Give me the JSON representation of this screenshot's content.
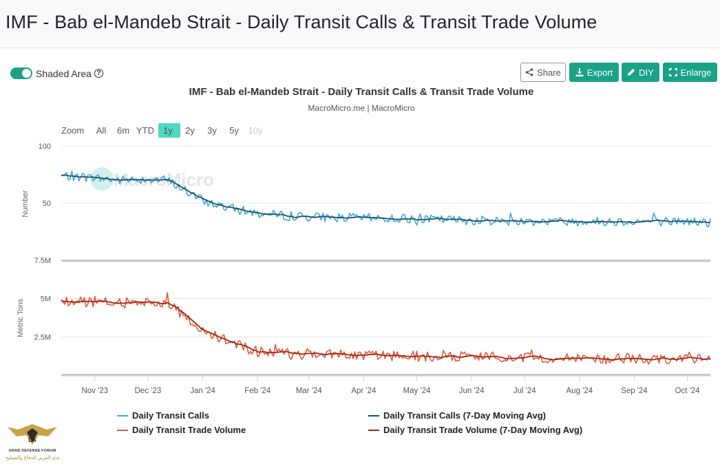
{
  "page": {
    "title": "IMF - Bab el-Mandeb Strait - Daily Transit Calls & Transit Trade Volume"
  },
  "controls": {
    "shaded_area_label": "Shaded Area",
    "help_glyph": "?",
    "share_label": "Share",
    "export_label": "Export",
    "diy_label": "DIY",
    "enlarge_label": "Enlarge"
  },
  "chart_data": {
    "type": "line",
    "title": "IMF - Bab el-Mandeb Strait - Daily Transit Calls & Transit Trade Volume",
    "subtitle": "MacroMicro.me | MacroMicro",
    "watermark": "MacroMicro",
    "zoom": {
      "label": "Zoom",
      "options": [
        "All",
        "6m",
        "YTD",
        "1y",
        "2y",
        "3y",
        "5y",
        "10y"
      ],
      "selected": "1y",
      "disabled": [
        "10y"
      ]
    },
    "x_range": [
      "2023-10-13",
      "2024-10-14"
    ],
    "x_tick_labels": [
      "Nov '23",
      "Dec '23",
      "Jan '24",
      "Feb '24",
      "Mar '24",
      "Apr '24",
      "May '24",
      "Jun '24",
      "Jul '24",
      "Aug '24",
      "Sep '24",
      "Oct '24"
    ],
    "colors": {
      "calls": "#3fa9d5",
      "calls_ma": "#1d4f6c",
      "volume": "#e25a3e",
      "volume_ma": "#9b2512"
    },
    "panels": [
      {
        "name": "transit-calls",
        "ylabel": "Number",
        "ylim": [
          0,
          100
        ],
        "y_tick_values": [
          50,
          100
        ],
        "y_tick_labels": [
          "50",
          "100"
        ],
        "series": [
          {
            "name": "Daily Transit Calls",
            "monthly_anchors": [
              [
                "2023-10-13",
                74
              ],
              [
                "2023-11-01",
                72
              ],
              [
                "2023-11-15",
                70
              ],
              [
                "2023-12-01",
                71
              ],
              [
                "2023-12-12",
                70
              ],
              [
                "2023-12-20",
                63
              ],
              [
                "2024-01-01",
                52
              ],
              [
                "2024-01-15",
                46
              ],
              [
                "2024-02-01",
                41
              ],
              [
                "2024-02-15",
                39
              ],
              [
                "2024-03-01",
                38
              ],
              [
                "2024-04-01",
                37
              ],
              [
                "2024-05-01",
                36
              ],
              [
                "2024-06-01",
                35
              ],
              [
                "2024-07-01",
                34
              ],
              [
                "2024-08-01",
                34
              ],
              [
                "2024-09-01",
                34
              ],
              [
                "2024-10-01",
                34
              ],
              [
                "2024-10-14",
                33
              ]
            ],
            "daily_noise_amplitude": 4
          },
          {
            "name": "Daily Transit Calls (7-Day Moving Avg)",
            "monthly_anchors": [
              [
                "2023-10-13",
                74
              ],
              [
                "2023-11-01",
                72
              ],
              [
                "2023-11-15",
                70
              ],
              [
                "2023-12-01",
                71
              ],
              [
                "2023-12-12",
                70
              ],
              [
                "2023-12-20",
                63
              ],
              [
                "2024-01-01",
                52
              ],
              [
                "2024-01-15",
                46
              ],
              [
                "2024-02-01",
                41
              ],
              [
                "2024-02-15",
                39
              ],
              [
                "2024-03-01",
                38
              ],
              [
                "2024-04-01",
                37
              ],
              [
                "2024-05-01",
                36
              ],
              [
                "2024-06-01",
                35
              ],
              [
                "2024-07-01",
                34
              ],
              [
                "2024-08-01",
                34
              ],
              [
                "2024-09-01",
                34
              ],
              [
                "2024-10-01",
                34
              ],
              [
                "2024-10-14",
                33
              ]
            ]
          }
        ]
      },
      {
        "name": "transit-trade-volume",
        "ylabel": "Metric Tons",
        "ylim": [
          0,
          7500000
        ],
        "y_tick_values": [
          2500000,
          5000000,
          7500000
        ],
        "y_tick_labels": [
          "2.5M",
          "5M",
          "7.5M"
        ],
        "series": [
          {
            "name": "Daily Transit Trade Volume",
            "monthly_anchors": [
              [
                "2023-10-13",
                4.8
              ],
              [
                "2023-11-01",
                4.8
              ],
              [
                "2023-11-15",
                4.7
              ],
              [
                "2023-12-01",
                4.8
              ],
              [
                "2023-12-12",
                4.7
              ],
              [
                "2023-12-20",
                4.0
              ],
              [
                "2024-01-01",
                2.9
              ],
              [
                "2024-01-15",
                2.2
              ],
              [
                "2024-02-01",
                1.5
              ],
              [
                "2024-02-15",
                1.45
              ],
              [
                "2024-03-01",
                1.45
              ],
              [
                "2024-04-01",
                1.3
              ],
              [
                "2024-05-01",
                1.25
              ],
              [
                "2024-06-01",
                1.2
              ],
              [
                "2024-07-01",
                1.15
              ],
              [
                "2024-08-01",
                1.1
              ],
              [
                "2024-09-01",
                1.05
              ],
              [
                "2024-10-01",
                1.1
              ],
              [
                "2024-10-14",
                1.0
              ]
            ],
            "unit_multiplier": 1000000,
            "daily_noise_amplitude": 0.35
          },
          {
            "name": "Daily Transit Trade Volume (7-Day Moving Avg)",
            "monthly_anchors": [
              [
                "2023-10-13",
                4.8
              ],
              [
                "2023-11-01",
                4.8
              ],
              [
                "2023-11-15",
                4.7
              ],
              [
                "2023-12-01",
                4.8
              ],
              [
                "2023-12-12",
                4.7
              ],
              [
                "2023-12-20",
                4.0
              ],
              [
                "2024-01-01",
                2.9
              ],
              [
                "2024-01-15",
                2.2
              ],
              [
                "2024-02-01",
                1.5
              ],
              [
                "2024-02-15",
                1.45
              ],
              [
                "2024-03-01",
                1.45
              ],
              [
                "2024-04-01",
                1.3
              ],
              [
                "2024-05-01",
                1.25
              ],
              [
                "2024-06-01",
                1.2
              ],
              [
                "2024-07-01",
                1.15
              ],
              [
                "2024-08-01",
                1.1
              ],
              [
                "2024-09-01",
                1.05
              ],
              [
                "2024-10-01",
                1.1
              ],
              [
                "2024-10-14",
                1.0
              ]
            ],
            "unit_multiplier": 1000000
          }
        ]
      }
    ],
    "legend": [
      "Daily Transit Calls",
      "Daily Transit Calls (7-Day Moving Avg)",
      "Daily Transit Trade Volume",
      "Daily Transit Trade Volume (7-Day Moving Avg)"
    ],
    "legend_placement": "bottom",
    "grid": true
  },
  "footer_logo": {
    "line1": "DA",
    "line2": "ARAB DEFENSE FORUM",
    "line3": "المنتدى العربي للدفاع والتسليح"
  }
}
